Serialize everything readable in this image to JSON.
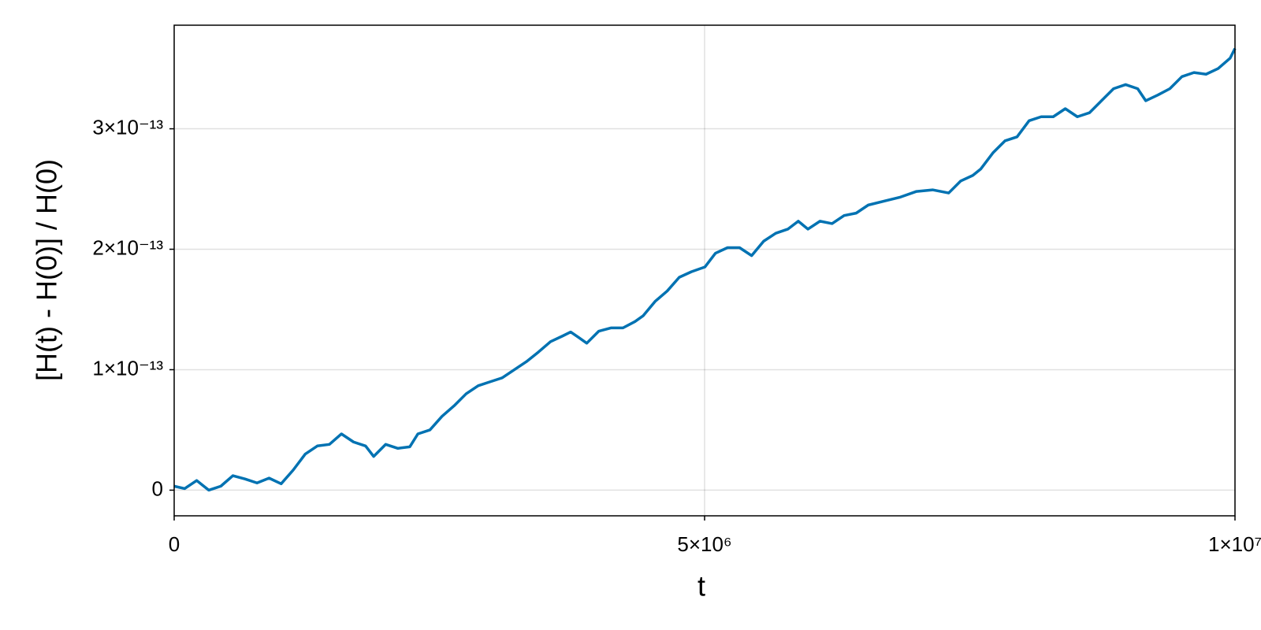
{
  "chart_data": {
    "type": "line",
    "xlabel": "t",
    "ylabel": "[H(t) - H(0)] / H(0)",
    "xlim": [
      0,
      10000000
    ],
    "ylim": [
      -2.13e-14,
      3.86e-13
    ],
    "xticks": [
      0,
      {
        "value": 5000000,
        "label": "5×10⁶"
      },
      {
        "value": 10000000,
        "label": "1×10⁷"
      }
    ],
    "yticks": [
      0,
      {
        "value": 1e-13,
        "label": "1×10⁻¹³"
      },
      {
        "value": 2e-13,
        "label": "2×10⁻¹³"
      },
      {
        "value": 3e-13,
        "label": "3×10⁻¹³"
      }
    ],
    "grid": true,
    "x": [
      0,
      98600,
      212300,
      326000,
      439700,
      553400,
      667200,
      780900,
      894600,
      1008300,
      1122000,
      1235800,
      1349500,
      1463200,
      1576900,
      1690700,
      1804400,
      1880200,
      1993900,
      2107700,
      2221400,
      2297200,
      2410900,
      2524600,
      2638400,
      2752100,
      2865800,
      2979500,
      3093300,
      3207000,
      3320700,
      3434400,
      3548100,
      3661900,
      3737700,
      3813500,
      3889300,
      4003000,
      4116800,
      4230500,
      4344200,
      4420000,
      4533700,
      4647500,
      4761200,
      4874900,
      5003800,
      5102400,
      5216100,
      5329800,
      5443500,
      5557200,
      5671000,
      5784700,
      5883200,
      5974200,
      6087900,
      6201700,
      6315400,
      6429100,
      6542800,
      6694500,
      6846100,
      6997700,
      7149400,
      7301000,
      7414700,
      7528400,
      7604200,
      7718000,
      7831700,
      7945400,
      8059100,
      8172900,
      8286600,
      8400300,
      8514000,
      8627800,
      8741500,
      8855200,
      8968900,
      9082600,
      9158500,
      9272200,
      9385900,
      9499600,
      9613300,
      9727100,
      9840800,
      9954500,
      10000000
    ],
    "series": [
      {
        "color": "#0072b2",
        "values": [
          3.3e-15,
          1.3e-15,
          8e-15,
          0,
          3.3e-15,
          1.2e-14,
          9.3e-15,
          6e-15,
          1e-14,
          5.3e-15,
          1.67e-14,
          3e-14,
          3.67e-14,
          3.8e-14,
          4.67e-14,
          4e-14,
          3.67e-14,
          2.8e-14,
          3.8e-14,
          3.47e-14,
          3.6e-14,
          4.67e-14,
          5e-14,
          6.13e-14,
          7e-14,
          8e-14,
          8.67e-14,
          9e-14,
          9.33e-14,
          1e-13,
          1.067e-13,
          1.147e-13,
          1.233e-13,
          1.28e-13,
          1.313e-13,
          1.267e-13,
          1.22e-13,
          1.32e-13,
          1.347e-13,
          1.347e-13,
          1.4e-13,
          1.447e-13,
          1.567e-13,
          1.653e-13,
          1.767e-13,
          1.813e-13,
          1.853e-13,
          1.967e-13,
          2.013e-13,
          2.013e-13,
          1.947e-13,
          2.067e-13,
          2.133e-13,
          2.167e-13,
          2.233e-13,
          2.167e-13,
          2.233e-13,
          2.213e-13,
          2.28e-13,
          2.3e-13,
          2.367e-13,
          2.4e-13,
          2.433e-13,
          2.48e-13,
          2.493e-13,
          2.467e-13,
          2.567e-13,
          2.613e-13,
          2.667e-13,
          2.8e-13,
          2.9e-13,
          2.933e-13,
          3.067e-13,
          3.1e-13,
          3.1e-13,
          3.167e-13,
          3.1e-13,
          3.133e-13,
          3.233e-13,
          3.333e-13,
          3.367e-13,
          3.333e-13,
          3.233e-13,
          3.28e-13,
          3.333e-13,
          3.433e-13,
          3.467e-13,
          3.453e-13,
          3.5e-13,
          3.587e-13,
          3.667e-13
        ]
      }
    ]
  }
}
